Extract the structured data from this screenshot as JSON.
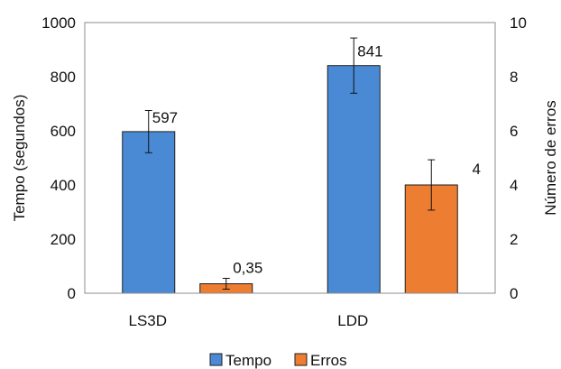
{
  "chart_data": {
    "type": "bar",
    "categories": [
      "LS3D",
      "LDD"
    ],
    "series": [
      {
        "name": "Tempo",
        "axis": "left",
        "color": "#4a8ad4",
        "values": [
          597,
          841
        ],
        "error": [
          78,
          102
        ],
        "labels": [
          "597",
          "841"
        ]
      },
      {
        "name": "Erros",
        "axis": "right",
        "color": "#ed7d31",
        "values": [
          0.35,
          4
        ],
        "error": [
          0.2,
          0.93
        ],
        "labels": [
          "0,35",
          "4"
        ]
      }
    ],
    "ylabel": "Tempo (segundos)",
    "ylim": [
      0,
      1000
    ],
    "yticks": [
      "0",
      "200",
      "400",
      "600",
      "800",
      "1000"
    ],
    "y2label": "Número de erros",
    "y2lim": [
      0,
      10
    ],
    "y2ticks": [
      "0",
      "2",
      "4",
      "6",
      "8",
      "10"
    ],
    "grid": false,
    "legend_position": "bottom"
  }
}
